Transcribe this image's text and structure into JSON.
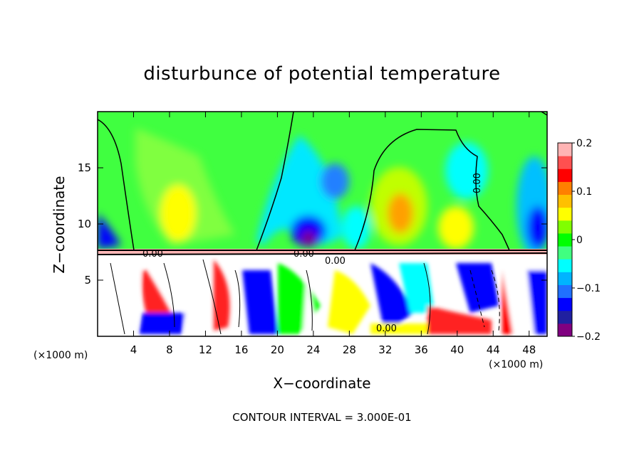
{
  "chart_data": {
    "type": "heatmap",
    "title": "disturbunce of potential temperature",
    "xlabel": "X−coordinate",
    "ylabel": "Z−coordinate",
    "x_unit_left": "(×1000 m)",
    "x_unit_right": "(×1000 m)",
    "xlim": [
      0,
      50
    ],
    "ylim": [
      0,
      20
    ],
    "x_ticks": [
      4,
      8,
      12,
      16,
      20,
      24,
      28,
      32,
      36,
      40,
      44,
      48
    ],
    "x_tick_labels": [
      "4",
      "8",
      "12",
      "16",
      "20",
      "24",
      "28",
      "32",
      "36",
      "40",
      "44",
      "48"
    ],
    "y_ticks": [
      5,
      10,
      15
    ],
    "y_tick_labels": [
      "5",
      "10",
      "15"
    ],
    "colorbar": {
      "min": -0.2,
      "max": 0.2,
      "ticks": [
        0.2,
        0.1,
        0,
        -0.1,
        -0.2
      ],
      "tick_labels": [
        "0.2",
        "0.1",
        "0",
        "−0.1",
        "−0.2"
      ],
      "colors": [
        "#800080",
        "#2020a0",
        "#0000ff",
        "#2070ff",
        "#00b4ff",
        "#00ffff",
        "#40ff80",
        "#00ff00",
        "#80ff00",
        "#ffff00",
        "#ffc000",
        "#ff8000",
        "#ff0000",
        "#ff5050",
        "#ffb4b4"
      ]
    },
    "contour_labels": [
      "0.00",
      "0.00",
      "0.00",
      "0.00",
      "0.00"
    ],
    "footnote": "CONTOUR INTERVAL = 3.000E-01"
  }
}
